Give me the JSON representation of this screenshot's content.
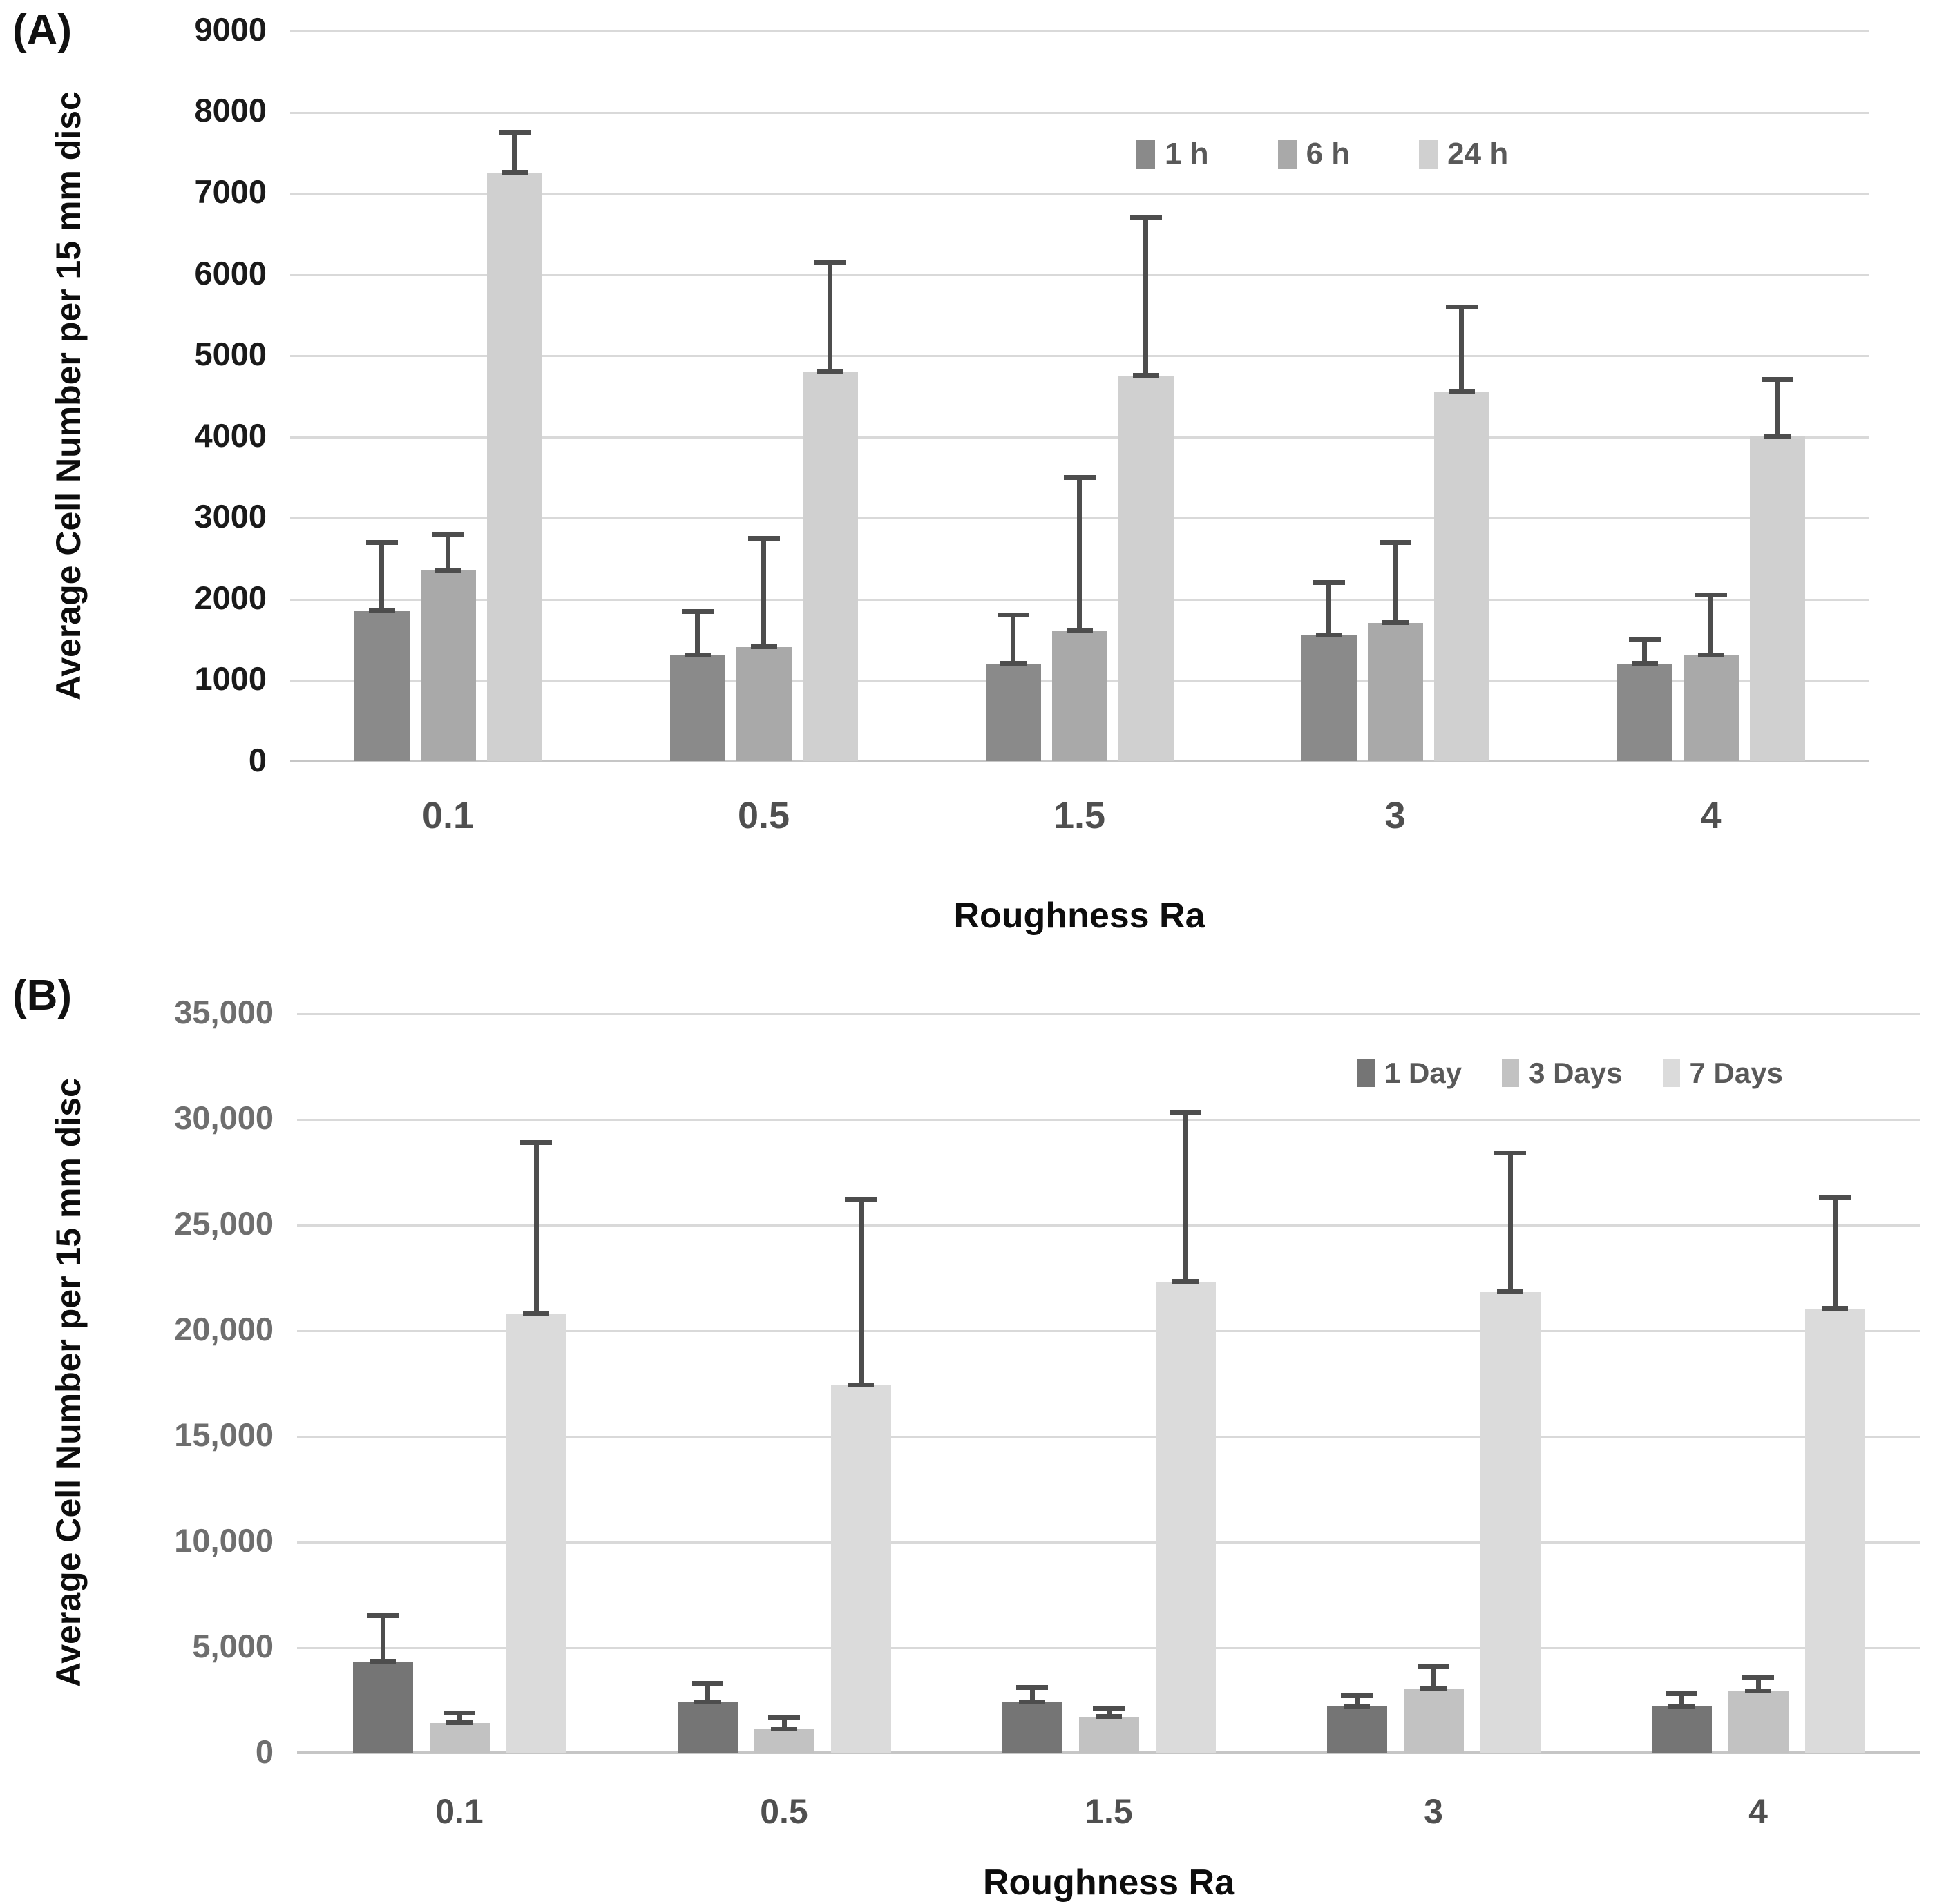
{
  "chart_data": [
    {
      "type": "bar",
      "panel_label": "(A)",
      "ylabel": "Average Cell Number per 15 mm disc",
      "xlabel": "Roughness Ra",
      "categories": [
        "0.1",
        "0.5",
        "1.5",
        "3",
        "4"
      ],
      "y_ticks": [
        "9000",
        "8000",
        "7000",
        "6000",
        "5000",
        "4000",
        "3000",
        "2000",
        "1000",
        "0"
      ],
      "ylim": [
        0,
        9000
      ],
      "grid": true,
      "legend_position": "top-right-inside",
      "error_bar_color": "#4d4d4d",
      "series": [
        {
          "name": "1 h",
          "color": "#8a8a8a",
          "values": [
            1850,
            1300,
            1200,
            1550,
            1200
          ],
          "errors_plus": [
            850,
            550,
            600,
            650,
            300
          ]
        },
        {
          "name": "6 h",
          "color": "#a9a9a9",
          "values": [
            2350,
            1400,
            1600,
            1700,
            1300
          ],
          "errors_plus": [
            450,
            1350,
            1900,
            1000,
            750
          ]
        },
        {
          "name": "24 h",
          "color": "#d0d0d0",
          "values": [
            7250,
            4800,
            4750,
            4550,
            4000
          ],
          "errors_plus": [
            500,
            1350,
            1950,
            1050,
            700
          ]
        }
      ]
    },
    {
      "type": "bar",
      "panel_label": "(B)",
      "ylabel": "Average Cell Number per 15 mm disc",
      "xlabel": "Roughness Ra",
      "categories": [
        "0.1",
        "0.5",
        "1.5",
        "3",
        "4"
      ],
      "y_ticks": [
        "35,000",
        "30,000",
        "25,000",
        "20,000",
        "15,000",
        "10,000",
        "5,000",
        "0"
      ],
      "ylim": [
        0,
        35000
      ],
      "grid": true,
      "legend_position": "top-right-inside",
      "error_bar_color": "#4d4d4d",
      "series": [
        {
          "name": "1 Day",
          "color": "#757575",
          "values": [
            4300,
            2400,
            2400,
            2200,
            2200
          ],
          "errors_plus": [
            2200,
            900,
            700,
            500,
            600
          ]
        },
        {
          "name": "3 Days",
          "color": "#c2c2c2",
          "values": [
            1400,
            1100,
            1700,
            3000,
            2900
          ],
          "errors_plus": [
            500,
            600,
            400,
            1100,
            700
          ]
        },
        {
          "name": "7 Days",
          "color": "#dbdbdb",
          "values": [
            20800,
            17400,
            22300,
            21800,
            21000
          ],
          "errors_plus": [
            8100,
            8800,
            8000,
            6600,
            5300
          ]
        }
      ]
    }
  ]
}
